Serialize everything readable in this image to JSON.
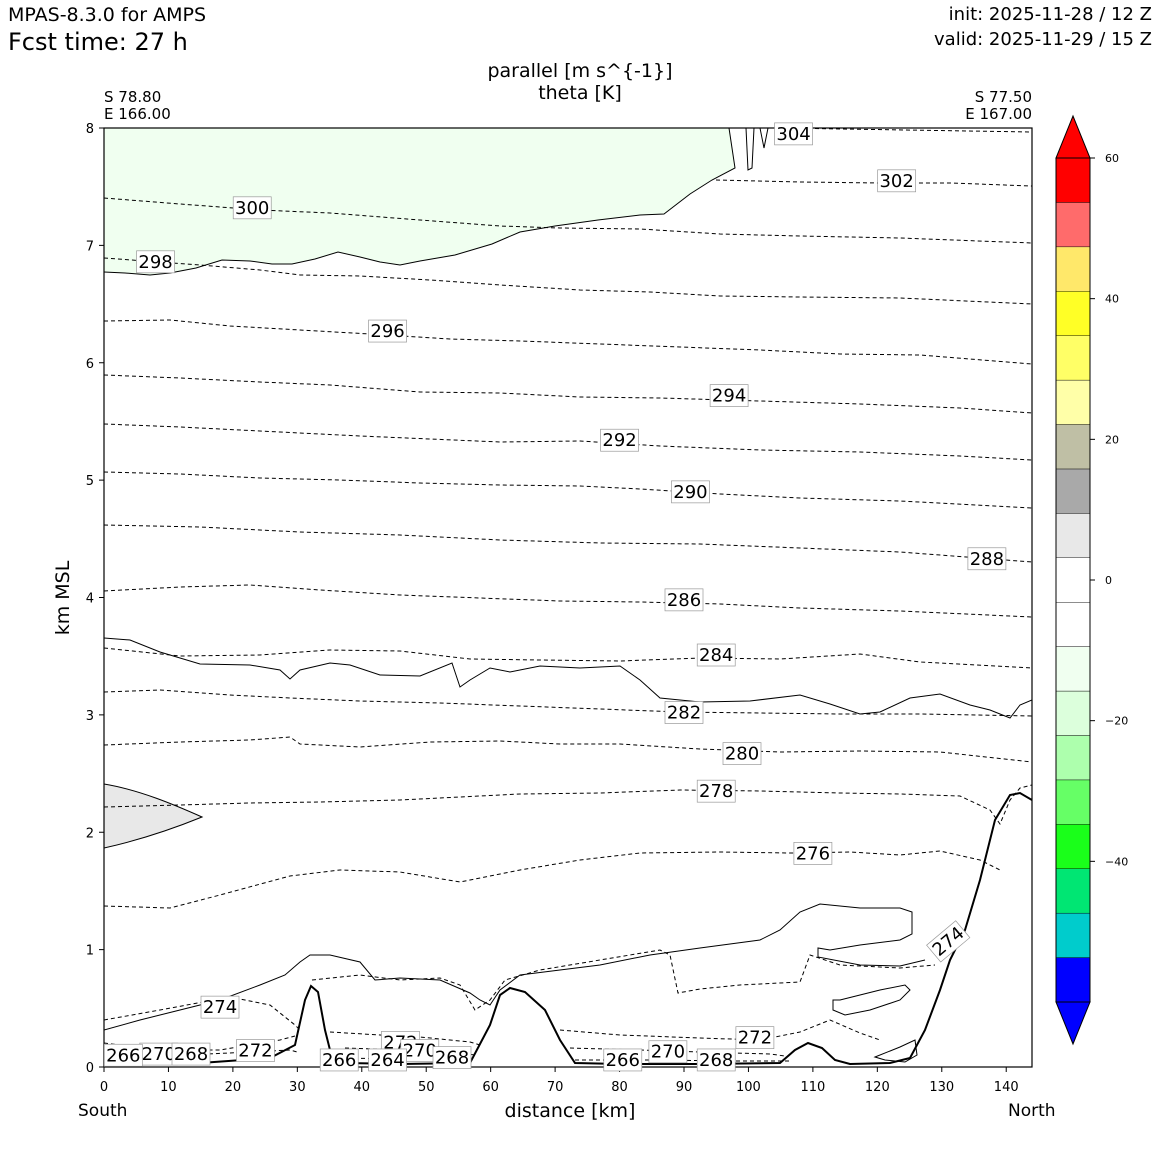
{
  "header": {
    "model": "MPAS-8.3.0 for AMPS",
    "fcst_time": "Fcst time:   27 h",
    "init": "init: 2025-11-28 / 12 Z",
    "valid": "valid: 2025-11-29 / 15 Z"
  },
  "chart_data": {
    "type": "cross-section",
    "title": "parallel [m s^{-1}]",
    "subtitle": "theta [K]",
    "xlabel": "distance [km]",
    "ylabel": "km MSL",
    "xlim": [
      0,
      144
    ],
    "ylim": [
      0,
      8
    ],
    "x_ticks": [
      0,
      10,
      20,
      30,
      40,
      50,
      60,
      70,
      80,
      90,
      100,
      110,
      120,
      130,
      140
    ],
    "y_ticks": [
      0,
      1,
      2,
      3,
      4,
      5,
      6,
      7,
      8
    ],
    "left_end": {
      "lat": "S 78.80",
      "lon": "E 166.00",
      "label": "South"
    },
    "right_end": {
      "lat": "S 77.50",
      "lon": "E 167.00",
      "label": "North"
    },
    "colorbar": {
      "ticks": [
        "60",
        "40",
        "20",
        "0",
        "−20",
        "−40"
      ],
      "colors": [
        "#0000ff",
        "#00cccc",
        "#00e673",
        "#1aff1a",
        "#66ff66",
        "#adffad",
        "#dcffdc",
        "#f0fff0",
        "#ffffff",
        "#ffffff",
        "#e8e8e8",
        "#a9a9a9",
        "#bfbfa5",
        "#ffffa8",
        "#ffff66",
        "#ffff26",
        "#ffe86a",
        "#ff6b6b",
        "#ff0000"
      ],
      "under_color": "#0000ff",
      "over_color": "#ff0000",
      "range": [
        -60,
        60
      ]
    },
    "theta_labels": [
      {
        "value": "304",
        "x": 107,
        "z": 7.95
      },
      {
        "value": "302",
        "x": 123,
        "z": 7.55
      },
      {
        "value": "300",
        "x": 23,
        "z": 7.32
      },
      {
        "value": "298",
        "x": 8,
        "z": 6.86
      },
      {
        "value": "296",
        "x": 44,
        "z": 6.27
      },
      {
        "value": "294",
        "x": 97,
        "z": 5.72
      },
      {
        "value": "292",
        "x": 80,
        "z": 5.34
      },
      {
        "value": "290",
        "x": 91,
        "z": 4.9
      },
      {
        "value": "288",
        "x": 137,
        "z": 4.33
      },
      {
        "value": "286",
        "x": 90,
        "z": 3.98
      },
      {
        "value": "284",
        "x": 95,
        "z": 3.51
      },
      {
        "value": "282",
        "x": 90,
        "z": 3.02
      },
      {
        "value": "280",
        "x": 99,
        "z": 2.67
      },
      {
        "value": "278",
        "x": 95,
        "z": 2.35
      },
      {
        "value": "276",
        "x": 110,
        "z": 1.82
      },
      {
        "value": "274",
        "x": 131,
        "z": 1.07
      },
      {
        "value": "274",
        "x": 18,
        "z": 0.51
      },
      {
        "value": "272",
        "x": 23.5,
        "z": 0.14
      },
      {
        "value": "272",
        "x": 46,
        "z": 0.21
      },
      {
        "value": "272",
        "x": 101,
        "z": 0.25
      },
      {
        "value": "270",
        "x": 8.5,
        "z": 0.11
      },
      {
        "value": "270",
        "x": 49,
        "z": 0.14
      },
      {
        "value": "270",
        "x": 87.5,
        "z": 0.13
      },
      {
        "value": "268",
        "x": 13.5,
        "z": 0.11
      },
      {
        "value": "268",
        "x": 54,
        "z": 0.08
      },
      {
        "value": "268",
        "x": 95,
        "z": 0.06
      },
      {
        "value": "266",
        "x": 3,
        "z": 0.1
      },
      {
        "value": "266",
        "x": 36.5,
        "z": 0.06
      },
      {
        "value": "266",
        "x": 80.5,
        "z": 0.06
      },
      {
        "value": "264",
        "x": 44,
        "z": 0.06
      }
    ]
  }
}
